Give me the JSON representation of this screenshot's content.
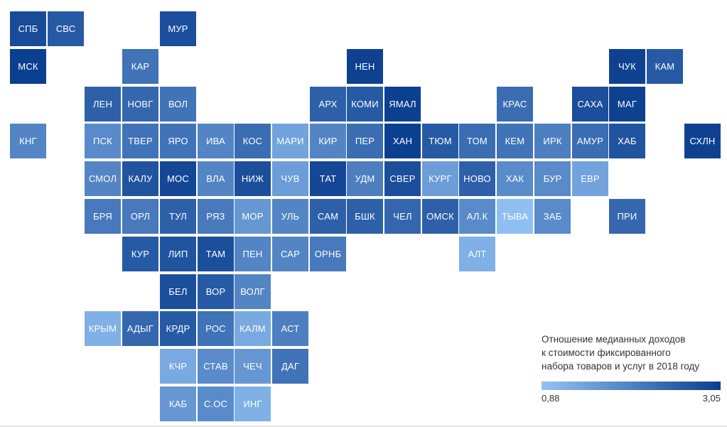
{
  "colors": {
    "low": "#93c3f5",
    "high": "#0b3f8f"
  },
  "legend": {
    "title": "Отношение медианных доходов\nк стоимости фиксированного\nнабора товаров и услуг в 2018 году",
    "min_label": "0,88",
    "max_label": "3,05",
    "min": 0.88,
    "max": 3.05
  },
  "regions": [
    {
      "label": "СПБ",
      "col": 0,
      "row": 0,
      "value": 2.85
    },
    {
      "label": "СВС",
      "col": 1,
      "row": 0,
      "value": 2.6
    },
    {
      "label": "МУР",
      "col": 4,
      "row": 0,
      "value": 2.8
    },
    {
      "label": "МСК",
      "col": 0,
      "row": 1,
      "value": 3.05
    },
    {
      "label": "КАР",
      "col": 3,
      "row": 1,
      "value": 2.2
    },
    {
      "label": "НЕН",
      "col": 9,
      "row": 1,
      "value": 3.0
    },
    {
      "label": "ЧУК",
      "col": 16,
      "row": 1,
      "value": 3.0
    },
    {
      "label": "КАМ",
      "col": 17,
      "row": 1,
      "value": 2.6
    },
    {
      "label": "ЛЕН",
      "col": 2,
      "row": 2,
      "value": 2.5
    },
    {
      "label": "НОВГ",
      "col": 3,
      "row": 2,
      "value": 2.4
    },
    {
      "label": "ВОЛ",
      "col": 4,
      "row": 2,
      "value": 2.2
    },
    {
      "label": "АРХ",
      "col": 8,
      "row": 2,
      "value": 2.5
    },
    {
      "label": "КОМИ",
      "col": 9,
      "row": 2,
      "value": 2.6
    },
    {
      "label": "ЯМАЛ",
      "col": 10,
      "row": 2,
      "value": 3.05
    },
    {
      "label": "КРАС",
      "col": 13,
      "row": 2,
      "value": 2.3
    },
    {
      "label": "САХА",
      "col": 15,
      "row": 2,
      "value": 2.8
    },
    {
      "label": "МАГ",
      "col": 16,
      "row": 2,
      "value": 3.0
    },
    {
      "label": "КНГ",
      "col": 0,
      "row": 3,
      "value": 1.9
    },
    {
      "label": "ПСК",
      "col": 2,
      "row": 3,
      "value": 1.8
    },
    {
      "label": "ТВЕР",
      "col": 3,
      "row": 3,
      "value": 2.2
    },
    {
      "label": "ЯРО",
      "col": 4,
      "row": 3,
      "value": 2.2
    },
    {
      "label": "ИВА",
      "col": 5,
      "row": 3,
      "value": 1.9
    },
    {
      "label": "КОС",
      "col": 6,
      "row": 3,
      "value": 2.3
    },
    {
      "label": "МАРИ",
      "col": 7,
      "row": 3,
      "value": 1.4
    },
    {
      "label": "КИР",
      "col": 8,
      "row": 3,
      "value": 1.9
    },
    {
      "label": "ПЕР",
      "col": 9,
      "row": 3,
      "value": 2.3
    },
    {
      "label": "ХАН",
      "col": 10,
      "row": 3,
      "value": 3.05
    },
    {
      "label": "ТЮМ",
      "col": 11,
      "row": 3,
      "value": 2.6
    },
    {
      "label": "ТОМ",
      "col": 12,
      "row": 3,
      "value": 2.3
    },
    {
      "label": "КЕМ",
      "col": 13,
      "row": 3,
      "value": 2.2
    },
    {
      "label": "ИРК",
      "col": 14,
      "row": 3,
      "value": 2.0
    },
    {
      "label": "АМУР",
      "col": 15,
      "row": 3,
      "value": 2.3
    },
    {
      "label": "ХАБ",
      "col": 16,
      "row": 3,
      "value": 2.7
    },
    {
      "label": "СХЛН",
      "col": 18,
      "row": 3,
      "value": 3.0
    },
    {
      "label": "СМОЛ",
      "col": 2,
      "row": 4,
      "value": 1.9
    },
    {
      "label": "КАЛУ",
      "col": 3,
      "row": 4,
      "value": 2.7
    },
    {
      "label": "МОС",
      "col": 4,
      "row": 4,
      "value": 2.9
    },
    {
      "label": "ВЛА",
      "col": 5,
      "row": 4,
      "value": 1.9
    },
    {
      "label": "НИЖ",
      "col": 6,
      "row": 4,
      "value": 2.8
    },
    {
      "label": "ЧУВ",
      "col": 7,
      "row": 4,
      "value": 1.5
    },
    {
      "label": "ТАТ",
      "col": 8,
      "row": 4,
      "value": 2.9
    },
    {
      "label": "УДМ",
      "col": 9,
      "row": 4,
      "value": 2.0
    },
    {
      "label": "СВЕР",
      "col": 10,
      "row": 4,
      "value": 2.8
    },
    {
      "label": "КУРГ",
      "col": 11,
      "row": 4,
      "value": 1.5
    },
    {
      "label": "НОВО",
      "col": 12,
      "row": 4,
      "value": 2.5
    },
    {
      "label": "ХАК",
      "col": 13,
      "row": 4,
      "value": 1.8
    },
    {
      "label": "БУР",
      "col": 14,
      "row": 4,
      "value": 1.8
    },
    {
      "label": "ЕВР",
      "col": 15,
      "row": 4,
      "value": 1.4
    },
    {
      "label": "БРЯ",
      "col": 2,
      "row": 5,
      "value": 2.1
    },
    {
      "label": "ОРЛ",
      "col": 3,
      "row": 5,
      "value": 2.1
    },
    {
      "label": "ТУЛ",
      "col": 4,
      "row": 5,
      "value": 2.5
    },
    {
      "label": "РЯЗ",
      "col": 5,
      "row": 5,
      "value": 2.1
    },
    {
      "label": "МОР",
      "col": 6,
      "row": 5,
      "value": 1.6
    },
    {
      "label": "УЛЬ",
      "col": 7,
      "row": 5,
      "value": 1.9
    },
    {
      "label": "САМ",
      "col": 8,
      "row": 5,
      "value": 2.5
    },
    {
      "label": "БШК",
      "col": 9,
      "row": 5,
      "value": 2.5
    },
    {
      "label": "ЧЕЛ",
      "col": 10,
      "row": 5,
      "value": 2.4
    },
    {
      "label": "ОМСК",
      "col": 11,
      "row": 5,
      "value": 2.5
    },
    {
      "label": "АЛ.К",
      "col": 12,
      "row": 5,
      "value": 1.8
    },
    {
      "label": "ТЫВА",
      "col": 13,
      "row": 5,
      "value": 0.95
    },
    {
      "label": "ЗАБ",
      "col": 14,
      "row": 5,
      "value": 1.8
    },
    {
      "label": "ПРИ",
      "col": 16,
      "row": 5,
      "value": 2.4
    },
    {
      "label": "КУР",
      "col": 3,
      "row": 6,
      "value": 2.6
    },
    {
      "label": "ЛИП",
      "col": 4,
      "row": 6,
      "value": 2.7
    },
    {
      "label": "ТАМ",
      "col": 5,
      "row": 6,
      "value": 2.8
    },
    {
      "label": "ПЕН",
      "col": 6,
      "row": 6,
      "value": 1.9
    },
    {
      "label": "САР",
      "col": 7,
      "row": 6,
      "value": 1.9
    },
    {
      "label": "ОРНБ",
      "col": 8,
      "row": 6,
      "value": 2.1
    },
    {
      "label": "АЛТ",
      "col": 12,
      "row": 6,
      "value": 1.2
    },
    {
      "label": "БЕЛ",
      "col": 4,
      "row": 7,
      "value": 2.8
    },
    {
      "label": "ВОР",
      "col": 5,
      "row": 7,
      "value": 2.6
    },
    {
      "label": "ВОЛГ",
      "col": 6,
      "row": 7,
      "value": 1.9
    },
    {
      "label": "КРЫМ",
      "col": 2,
      "row": 8,
      "value": 1.2
    },
    {
      "label": "АДЫГ",
      "col": 3,
      "row": 8,
      "value": 2.4
    },
    {
      "label": "КРДР",
      "col": 4,
      "row": 8,
      "value": 2.6
    },
    {
      "label": "РОС",
      "col": 5,
      "row": 8,
      "value": 2.2
    },
    {
      "label": "КАЛМ",
      "col": 6,
      "row": 8,
      "value": 1.3
    },
    {
      "label": "АСТ",
      "col": 7,
      "row": 8,
      "value": 2.0
    },
    {
      "label": "КЧР",
      "col": 4,
      "row": 9,
      "value": 1.3
    },
    {
      "label": "СТАВ",
      "col": 5,
      "row": 9,
      "value": 1.8
    },
    {
      "label": "ЧЕЧ",
      "col": 6,
      "row": 9,
      "value": 1.6
    },
    {
      "label": "ДАГ",
      "col": 7,
      "row": 9,
      "value": 2.2
    },
    {
      "label": "КАБ",
      "col": 4,
      "row": 10,
      "value": 1.6
    },
    {
      "label": "С.ОС",
      "col": 5,
      "row": 10,
      "value": 1.8
    },
    {
      "label": "ИНГ",
      "col": 6,
      "row": 10,
      "value": 1.2
    }
  ]
}
